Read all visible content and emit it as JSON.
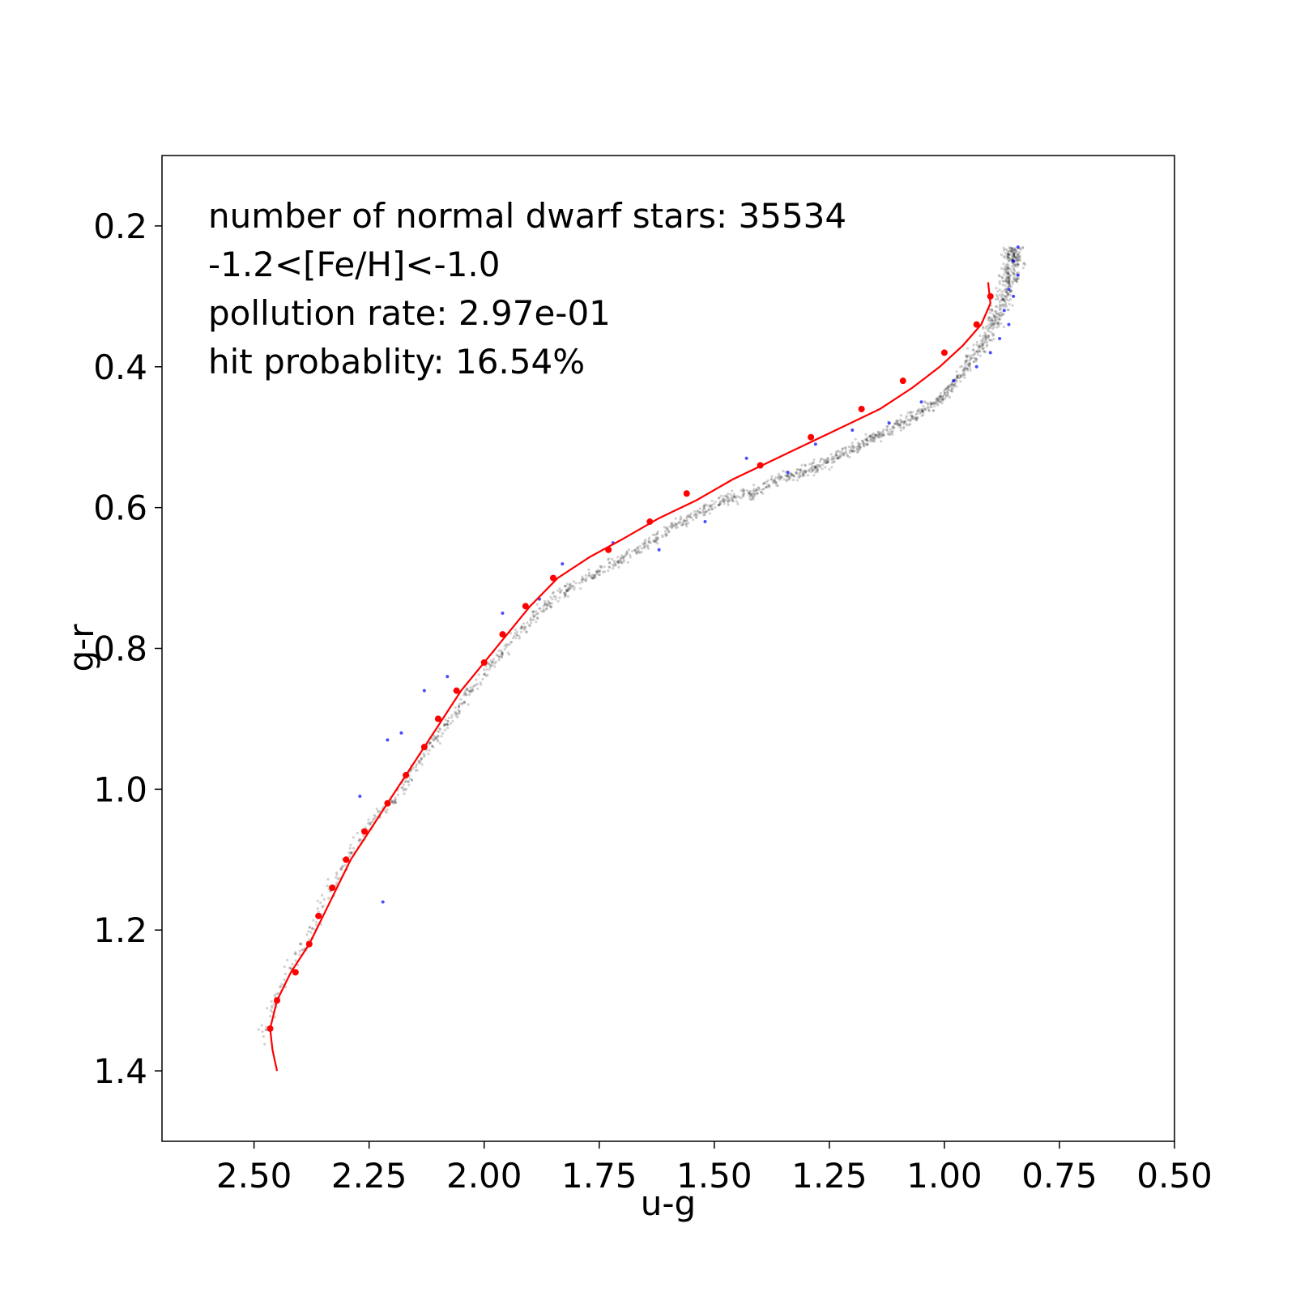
{
  "chart_data": {
    "type": "scatter",
    "xlabel": "u-g",
    "ylabel": "g-r",
    "xlim": [
      2.7,
      0.5
    ],
    "ylim": [
      1.5,
      0.1
    ],
    "x_inverted": true,
    "y_inverted": true,
    "x_ticks": [
      2.5,
      2.25,
      2.0,
      1.75,
      1.5,
      1.25,
      1.0,
      0.75,
      0.5
    ],
    "x_tick_labels": [
      "2.50",
      "2.25",
      "2.00",
      "1.75",
      "1.50",
      "1.25",
      "1.00",
      "0.75",
      "0.50"
    ],
    "y_ticks": [
      0.2,
      0.4,
      0.6,
      0.8,
      1.0,
      1.2,
      1.4
    ],
    "y_tick_labels": [
      "0.2",
      "0.4",
      "0.6",
      "0.8",
      "1.0",
      "1.2",
      "1.4"
    ],
    "annotations": [
      "number of normal dwarf stars: 35534",
      "-1.2<[Fe/H]<-1.0",
      "pollution rate: 2.97e-01",
      "hit probablity: 16.54%"
    ],
    "colors": {
      "dense": "#000000",
      "highlight": "#0000ff",
      "fit": "#ff0000"
    },
    "stellar_locus": [
      [
        2.49,
        1.36
      ],
      [
        2.44,
        1.28
      ],
      [
        2.39,
        1.22
      ],
      [
        2.34,
        1.15
      ],
      [
        2.29,
        1.09
      ],
      [
        2.24,
        1.04
      ],
      [
        2.19,
        1.01
      ],
      [
        2.15,
        0.97
      ],
      [
        2.11,
        0.93
      ],
      [
        2.07,
        0.9
      ],
      [
        2.03,
        0.86
      ],
      [
        1.98,
        0.82
      ],
      [
        1.93,
        0.78
      ],
      [
        1.88,
        0.75
      ],
      [
        1.83,
        0.72
      ],
      [
        1.78,
        0.7
      ],
      [
        1.72,
        0.68
      ],
      [
        1.66,
        0.66
      ],
      [
        1.6,
        0.63
      ],
      [
        1.54,
        0.61
      ],
      [
        1.48,
        0.59
      ],
      [
        1.42,
        0.58
      ],
      [
        1.36,
        0.56
      ],
      [
        1.3,
        0.55
      ],
      [
        1.24,
        0.53
      ],
      [
        1.18,
        0.51
      ],
      [
        1.12,
        0.49
      ],
      [
        1.06,
        0.47
      ],
      [
        1.0,
        0.44
      ],
      [
        0.95,
        0.4
      ],
      [
        0.91,
        0.36
      ],
      [
        0.88,
        0.32
      ],
      [
        0.86,
        0.28
      ],
      [
        0.85,
        0.25
      ],
      [
        0.85,
        0.23
      ]
    ],
    "highlight_points": [
      [
        0.84,
        0.23
      ],
      [
        0.85,
        0.25
      ],
      [
        0.84,
        0.27
      ],
      [
        0.86,
        0.29
      ],
      [
        0.85,
        0.3
      ],
      [
        0.87,
        0.32
      ],
      [
        0.86,
        0.34
      ],
      [
        0.88,
        0.36
      ],
      [
        0.9,
        0.38
      ],
      [
        0.93,
        0.4
      ],
      [
        0.98,
        0.42
      ],
      [
        1.05,
        0.45
      ],
      [
        1.12,
        0.48
      ],
      [
        1.2,
        0.49
      ],
      [
        1.28,
        0.51
      ],
      [
        1.34,
        0.55
      ],
      [
        1.43,
        0.53
      ],
      [
        1.52,
        0.62
      ],
      [
        1.62,
        0.66
      ],
      [
        1.72,
        0.65
      ],
      [
        1.83,
        0.68
      ],
      [
        1.88,
        0.73
      ],
      [
        1.96,
        0.75
      ],
      [
        2.08,
        0.84
      ],
      [
        2.13,
        0.86
      ],
      [
        2.18,
        0.92
      ],
      [
        2.21,
        0.93
      ],
      [
        2.27,
        1.01
      ],
      [
        2.22,
        1.16
      ]
    ],
    "fit_points": [
      [
        2.465,
        1.34
      ],
      [
        2.45,
        1.3
      ],
      [
        2.41,
        1.26
      ],
      [
        2.38,
        1.22
      ],
      [
        2.36,
        1.18
      ],
      [
        2.33,
        1.14
      ],
      [
        2.3,
        1.1
      ],
      [
        2.26,
        1.06
      ],
      [
        2.21,
        1.02
      ],
      [
        2.17,
        0.98
      ],
      [
        2.13,
        0.94
      ],
      [
        2.1,
        0.9
      ],
      [
        2.06,
        0.86
      ],
      [
        2.0,
        0.82
      ],
      [
        1.96,
        0.78
      ],
      [
        1.91,
        0.74
      ],
      [
        1.85,
        0.7
      ],
      [
        1.73,
        0.66
      ],
      [
        1.64,
        0.62
      ],
      [
        1.56,
        0.58
      ],
      [
        1.4,
        0.54
      ],
      [
        1.29,
        0.5
      ],
      [
        1.18,
        0.46
      ],
      [
        1.09,
        0.42
      ],
      [
        1.0,
        0.38
      ],
      [
        0.93,
        0.34
      ],
      [
        0.9,
        0.3
      ]
    ],
    "fit_curve": [
      [
        2.45,
        1.4
      ],
      [
        2.46,
        1.37
      ],
      [
        2.465,
        1.34
      ],
      [
        2.45,
        1.3
      ],
      [
        2.42,
        1.26
      ],
      [
        2.38,
        1.22
      ],
      [
        2.35,
        1.18
      ],
      [
        2.32,
        1.14
      ],
      [
        2.29,
        1.1
      ],
      [
        2.25,
        1.06
      ],
      [
        2.21,
        1.02
      ],
      [
        2.17,
        0.98
      ],
      [
        2.13,
        0.94
      ],
      [
        2.09,
        0.9
      ],
      [
        2.05,
        0.86
      ],
      [
        2.0,
        0.82
      ],
      [
        1.95,
        0.78
      ],
      [
        1.9,
        0.74
      ],
      [
        1.84,
        0.7
      ],
      [
        1.77,
        0.67
      ],
      [
        1.7,
        0.645
      ],
      [
        1.62,
        0.615
      ],
      [
        1.54,
        0.59
      ],
      [
        1.46,
        0.56
      ],
      [
        1.38,
        0.535
      ],
      [
        1.3,
        0.51
      ],
      [
        1.22,
        0.485
      ],
      [
        1.14,
        0.46
      ],
      [
        1.07,
        0.43
      ],
      [
        1.01,
        0.4
      ],
      [
        0.96,
        0.37
      ],
      [
        0.92,
        0.34
      ],
      [
        0.9,
        0.31
      ],
      [
        0.905,
        0.28
      ]
    ]
  }
}
